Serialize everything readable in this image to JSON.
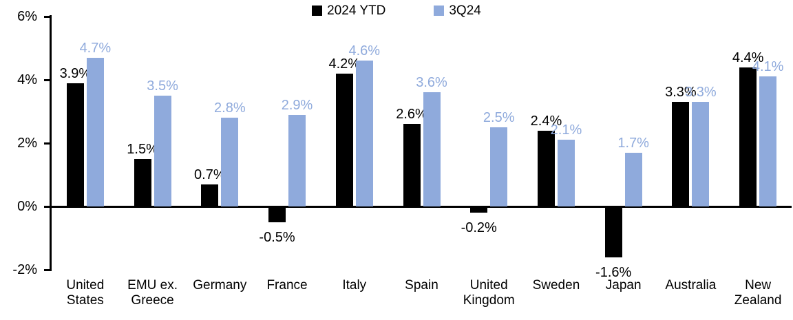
{
  "chart_data": {
    "type": "bar",
    "title": "",
    "legend_position": "top-center",
    "grid": false,
    "data_labels": true,
    "background_color": "#ffffff",
    "categories": [
      {
        "lines": [
          "United",
          "States"
        ]
      },
      {
        "lines": [
          "EMU ex.",
          "Greece"
        ]
      },
      {
        "lines": [
          "Germany"
        ]
      },
      {
        "lines": [
          "France"
        ]
      },
      {
        "lines": [
          "Italy"
        ]
      },
      {
        "lines": [
          "Spain"
        ]
      },
      {
        "lines": [
          "United",
          "Kingdom"
        ]
      },
      {
        "lines": [
          "Sweden"
        ]
      },
      {
        "lines": [
          "Japan"
        ]
      },
      {
        "lines": [
          "Australia"
        ]
      },
      {
        "lines": [
          "New",
          "Zealand"
        ]
      }
    ],
    "series": [
      {
        "name": "2024 YTD",
        "color": "#000000",
        "values": [
          3.9,
          1.5,
          0.7,
          -0.5,
          4.2,
          2.6,
          -0.2,
          2.4,
          -1.6,
          3.3,
          4.4
        ],
        "labels": [
          "3.9%",
          "1.5%",
          "0.7%",
          "-0.5%",
          "4.2%",
          "2.6%",
          "-0.2%",
          "2.4%",
          "-1.6%",
          "3.3%",
          "4.4%"
        ]
      },
      {
        "name": "3Q24",
        "color": "#8FAADC",
        "values": [
          4.7,
          3.5,
          2.8,
          2.9,
          4.6,
          3.6,
          2.5,
          2.1,
          1.7,
          3.3,
          4.1
        ],
        "labels": [
          "4.7%",
          "3.5%",
          "2.8%",
          "2.9%",
          "4.6%",
          "3.6%",
          "2.5%",
          "2.1%",
          "1.7%",
          "3.3%",
          "4.1%"
        ]
      }
    ],
    "y_axis": {
      "min": -2,
      "max": 6,
      "unit": "%",
      "ticks": [
        {
          "v": 6,
          "label": "6%"
        },
        {
          "v": 4,
          "label": "4%"
        },
        {
          "v": 2,
          "label": "2%"
        },
        {
          "v": 0,
          "label": "0%"
        },
        {
          "v": -2,
          "label": "-2%"
        }
      ]
    }
  }
}
